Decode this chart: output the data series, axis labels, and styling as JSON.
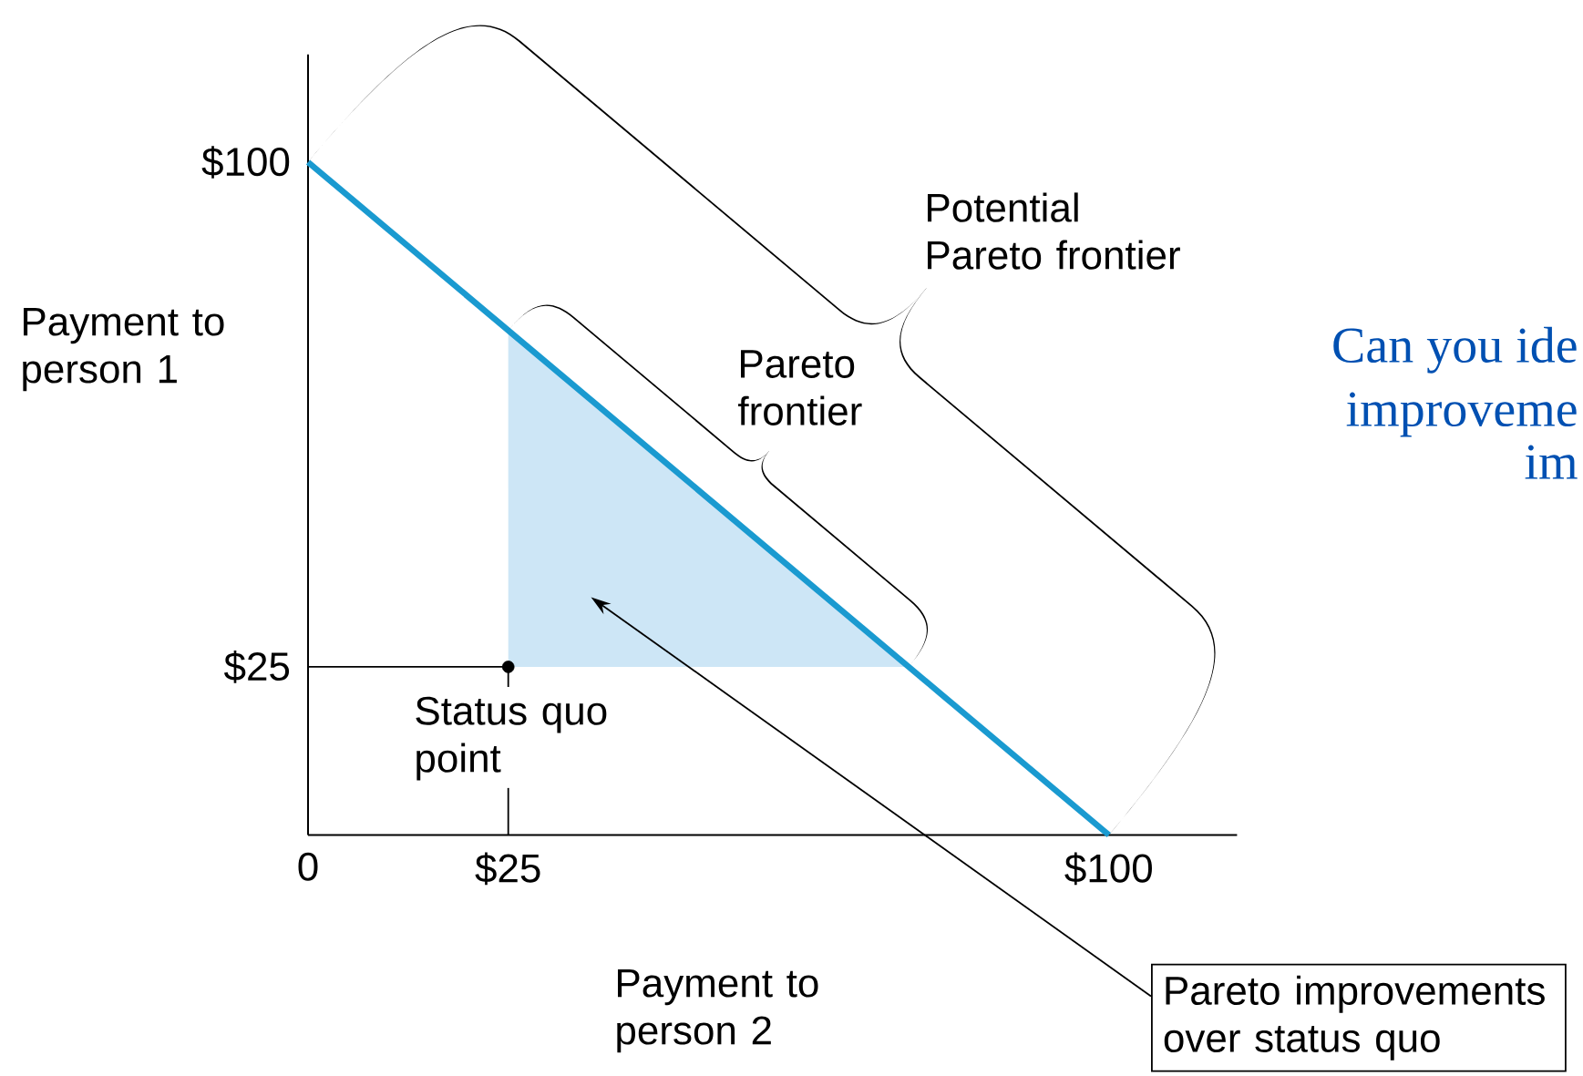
{
  "chart_data": {
    "type": "line",
    "xlabel": "Payment to person 2",
    "ylabel": "Payment to person 1",
    "xlim": [
      0,
      116
    ],
    "ylim": [
      0,
      116
    ],
    "xticks": [
      0,
      {
        "value": 25,
        "label": "$25"
      },
      {
        "value": 100,
        "label": "$100"
      }
    ],
    "yticks": [
      {
        "value": 25,
        "label": "$25"
      },
      {
        "value": 100,
        "label": "$100"
      }
    ],
    "series": [
      {
        "type": "line",
        "x": [
          0,
          100
        ],
        "values": [
          100,
          0
        ],
        "color": "#1a9ad0"
      },
      {
        "type": "area",
        "x": [
          25,
          75
        ],
        "values": [
          75,
          25
        ],
        "color": "#cde6f6"
      },
      {
        "type": "line",
        "x": [
          0,
          25,
          25
        ],
        "values": [
          25,
          25,
          22
        ],
        "color": "#000000"
      },
      {
        "type": "line",
        "x": [
          25,
          25
        ],
        "values": [
          7,
          0
        ],
        "color": "#000000"
      },
      {
        "type": "scatter",
        "x": [
          25
        ],
        "values": [
          25
        ],
        "color": "#000000"
      }
    ],
    "annotations": [
      "Potential Pareto frontier",
      "Pareto frontier",
      "Status quo point",
      "Pareto improvements over status quo",
      "Can you ide",
      "improveme",
      "im"
    ]
  }
}
